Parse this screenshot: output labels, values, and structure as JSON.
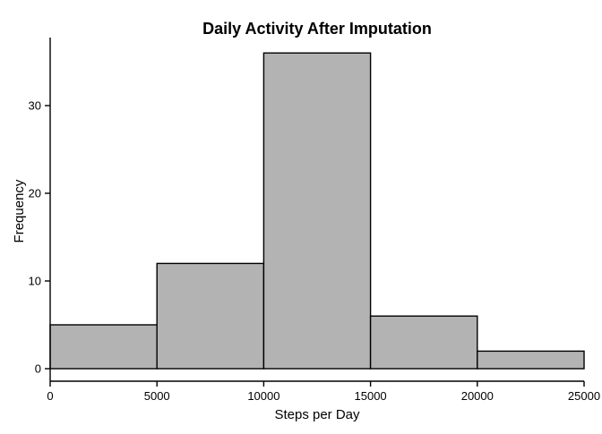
{
  "chart_data": {
    "type": "bar",
    "title": "Daily Activity After Imputation",
    "xlabel": "Steps per Day",
    "ylabel": "Frequency",
    "bins": [
      {
        "start": 0,
        "end": 5000,
        "count": 5
      },
      {
        "start": 5000,
        "end": 10000,
        "count": 12
      },
      {
        "start": 10000,
        "end": 15000,
        "count": 36
      },
      {
        "start": 15000,
        "end": 20000,
        "count": 6
      },
      {
        "start": 20000,
        "end": 25000,
        "count": 2
      }
    ],
    "x_ticks": [
      0,
      5000,
      10000,
      15000,
      20000,
      25000
    ],
    "y_ticks": [
      0,
      10,
      20,
      30
    ],
    "xlim": [
      0,
      25000
    ],
    "ylim": [
      0,
      36
    ],
    "grid": false,
    "colors": {
      "bar_fill": "#b3b3b3",
      "bar_stroke": "#000000"
    }
  }
}
